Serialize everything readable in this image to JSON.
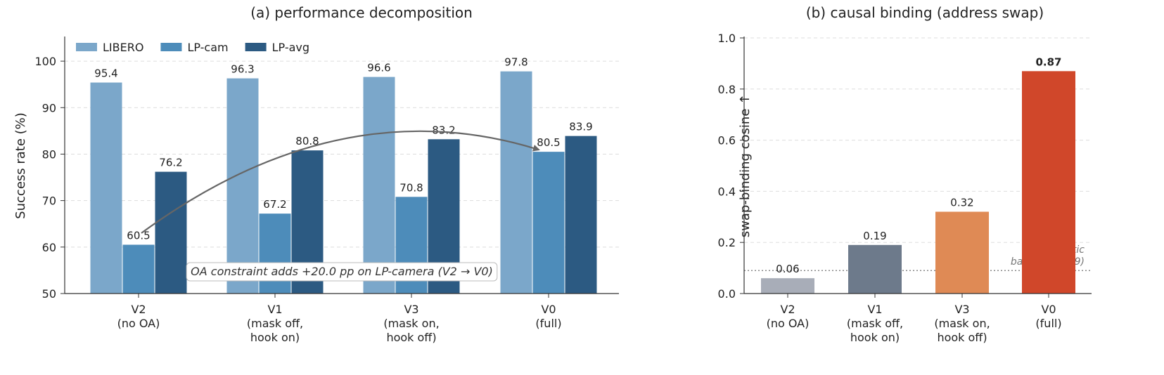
{
  "chart_data": [
    {
      "type": "bar",
      "title": "(a) performance decomposition",
      "ylabel": "Success rate (%)",
      "ylim": [
        50,
        105
      ],
      "yticks": [
        50,
        60,
        70,
        80,
        90,
        100
      ],
      "grid": "y-dashed",
      "legend": "top-left",
      "categories": [
        [
          "V2",
          "(no OA)"
        ],
        [
          "V1",
          "(mask off,",
          "hook on)"
        ],
        [
          "V3",
          "(mask on,",
          "hook off)"
        ],
        [
          "V0",
          "(full)"
        ]
      ],
      "series": [
        {
          "name": "LIBERO",
          "color": "#7ba7ca",
          "values": [
            95.4,
            96.3,
            96.6,
            97.8
          ],
          "labels": [
            "95.4",
            "96.3",
            "96.6",
            "97.8"
          ]
        },
        {
          "name": "LP-cam",
          "color": "#4d8cba",
          "values": [
            60.5,
            67.2,
            70.8,
            80.5
          ],
          "labels": [
            "60.5",
            "67.2",
            "70.8",
            "80.5"
          ]
        },
        {
          "name": "LP-avg",
          "color": "#2c5a82",
          "values": [
            76.2,
            80.8,
            83.2,
            83.9
          ],
          "labels": [
            "76.2",
            "80.8",
            "83.2",
            "83.9"
          ]
        }
      ],
      "annotation": {
        "text": "OA constraint adds +20.0 pp on LP-camera (V2 → V0)",
        "arrow_from": {
          "category": "V2",
          "series": "LP-cam",
          "value": 61.5
        },
        "arrow_to": {
          "category": "V0",
          "series": "LP-cam",
          "value": 80.5
        }
      }
    },
    {
      "type": "bar",
      "title": "(b) causal binding (address swap)",
      "ylabel": "swap-binding cosine ↑",
      "ylim": [
        0,
        1.0
      ],
      "yticks": [
        "0.0",
        "0.2",
        "0.4",
        "0.6",
        "0.8",
        "1.0"
      ],
      "grid": "y-dashed",
      "categories": [
        [
          "V2",
          "(no OA)"
        ],
        [
          "V1",
          "(mask off,",
          "hook on)"
        ],
        [
          "V3",
          "(mask on,",
          "hook off)"
        ],
        [
          "V0",
          "(full)"
        ]
      ],
      "values": [
        0.06,
        0.19,
        0.32,
        0.87
      ],
      "labels": [
        "0.06",
        "0.19",
        "0.32",
        "0.87"
      ],
      "colors": [
        "#a8adb8",
        "#6d7a8b",
        "#df8a55",
        "#d0472a"
      ],
      "highlight_label_index": 3,
      "baseline": {
        "value": 0.09,
        "text": [
          "max holistic",
          "baseline (0.09)"
        ]
      }
    }
  ]
}
